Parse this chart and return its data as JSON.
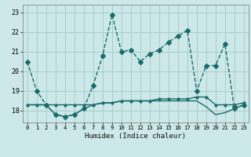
{
  "xlabel": "Humidex (Indice chaleur)",
  "bg_color": "#cce8e8",
  "grid_color": "#aacccc",
  "line_color": "#1a6b6b",
  "x_ticks": [
    0,
    1,
    2,
    3,
    4,
    5,
    6,
    7,
    8,
    9,
    10,
    11,
    12,
    13,
    14,
    15,
    16,
    17,
    18,
    19,
    20,
    21,
    22,
    23
  ],
  "y_ticks": [
    18,
    19,
    20,
    21,
    22,
    23
  ],
  "ylim": [
    17.4,
    23.4
  ],
  "xlim": [
    -0.5,
    23.5
  ],
  "series1": [
    20.5,
    19.0,
    18.3,
    17.8,
    17.7,
    17.8,
    18.1,
    19.3,
    20.8,
    22.9,
    21.0,
    21.1,
    20.5,
    20.9,
    21.1,
    21.5,
    21.8,
    22.1,
    19.0,
    20.3,
    20.3,
    21.4,
    18.1,
    18.3
  ],
  "series2": [
    18.3,
    18.3,
    18.3,
    18.3,
    18.3,
    18.3,
    18.3,
    18.3,
    18.4,
    18.4,
    18.5,
    18.5,
    18.5,
    18.5,
    18.6,
    18.6,
    18.6,
    18.6,
    18.7,
    18.7,
    18.3,
    18.3,
    18.3,
    18.4
  ],
  "series3": [
    18.3,
    18.3,
    18.3,
    17.8,
    17.7,
    17.8,
    18.1,
    18.3,
    18.4,
    18.4,
    18.5,
    18.5,
    18.5,
    18.5,
    18.5,
    18.5,
    18.5,
    18.5,
    18.5,
    18.2,
    17.8,
    17.9,
    18.1,
    18.3
  ],
  "marker_size": 3.0,
  "lw": 1.0
}
